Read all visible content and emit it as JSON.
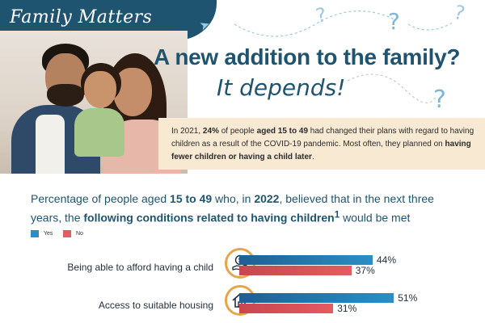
{
  "header": {
    "banner": "Family Matters"
  },
  "title": "A new addition to the family?",
  "subtitle": "It depends!",
  "info": {
    "t1": "In 2021, ",
    "b1": "24%",
    "t2": " of people ",
    "b2": "aged 15 to 49",
    "t3": " had changed their plans with regard to having children as a result of the COVID-19 pandemic. Most often, they planned on ",
    "b3": "having fewer children or having a child later",
    "t4": "."
  },
  "chart_heading": {
    "t1": "Percentage of people aged ",
    "b1": "15 to 49",
    "t2": " who, in ",
    "b2": "2022",
    "t3": ", believed that in the next three years, the ",
    "b3": "following conditions related to having children",
    "sup": "1",
    "t4": " would be met"
  },
  "colors": {
    "yes": "#2a8fc4",
    "no": "#e45a62",
    "accent": "#1f5470",
    "icon_ring": "#e8a44a"
  },
  "icons": {
    "row0": "money-hand-icon",
    "row1": "house-icon"
  },
  "chart_data": {
    "type": "bar",
    "orientation": "horizontal",
    "categories": [
      "Being able to afford having a child",
      "Access to suitable housing"
    ],
    "series": [
      {
        "name": "Yes",
        "values": [
          44,
          51
        ],
        "value_labels": [
          "44%",
          "51%"
        ]
      },
      {
        "name": "No",
        "values": [
          37,
          31
        ],
        "value_labels": [
          "37%",
          "31%"
        ]
      }
    ],
    "unit": "%",
    "xlim": [
      0,
      100
    ],
    "legend": "top-left",
    "grid": false
  }
}
